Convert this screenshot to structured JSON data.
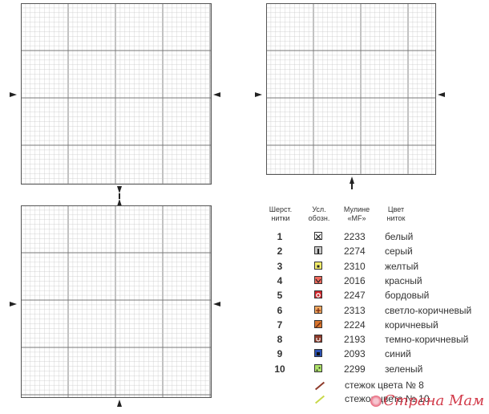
{
  "legend": {
    "headers": {
      "wool": "Шерст.\nнитки",
      "symbol": "Усл.\nобозн.",
      "mouline": "Мулине\n«MF»",
      "color": "Цвет\nниток"
    },
    "rows": [
      {
        "num": "1",
        "code": "2233",
        "name": "белый",
        "fill": "#ffffff",
        "mark": "x"
      },
      {
        "num": "2",
        "code": "2274",
        "name": "серый",
        "fill": "#c8c8c8",
        "mark": "bar"
      },
      {
        "num": "3",
        "code": "2310",
        "name": "желтый",
        "fill": "#f2ec6b",
        "mark": "dot"
      },
      {
        "num": "4",
        "code": "2016",
        "name": "красный",
        "fill": "#f06a5e",
        "mark": "v"
      },
      {
        "num": "5",
        "code": "2247",
        "name": "бордовый",
        "fill": "#d2262c",
        "mark": "o"
      },
      {
        "num": "6",
        "code": "2313",
        "name": "светло-коричневый",
        "fill": "#f0a860",
        "mark": "plus"
      },
      {
        "num": "7",
        "code": "2224",
        "name": "коричневый",
        "fill": "#d8762e",
        "mark": "slash"
      },
      {
        "num": "8",
        "code": "2193",
        "name": "темно-коричневый",
        "fill": "#8e3a2a",
        "mark": "u"
      },
      {
        "num": "9",
        "code": "2093",
        "name": "синий",
        "fill": "#2c52b4",
        "mark": "sq"
      },
      {
        "num": "10",
        "code": "2299",
        "name": "зеленый",
        "fill": "#aee26a",
        "mark": "dots"
      }
    ],
    "stitch_lines": [
      {
        "text": "стежок цвета № 8",
        "color": "#8e3a2a"
      },
      {
        "text": "стежок цвета № 10",
        "color": "#c8d84a"
      }
    ]
  },
  "watermark": "Страна Мам"
}
